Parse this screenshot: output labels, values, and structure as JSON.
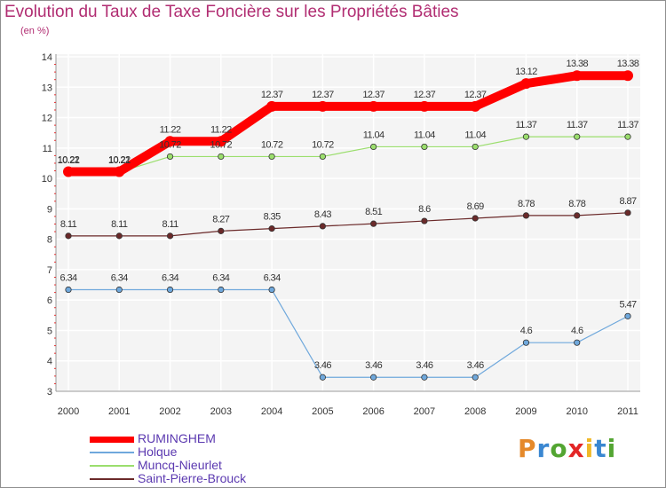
{
  "header": {
    "title": "Evolution du Taux de Taxe Foncière sur les Propriétés Bâties",
    "subtitle": "(en %)"
  },
  "brand": {
    "letters": [
      "P",
      "r",
      "o",
      "x",
      "i",
      "t",
      "i"
    ],
    "colors": [
      "#e5892a",
      "#3a87d1",
      "#53a532",
      "#e32626",
      "#f0b929",
      "#3a87d1",
      "#53a532"
    ]
  },
  "chart_data": {
    "type": "line",
    "title": "Evolution du Taux de Taxe Foncière sur les Propriétés Bâties",
    "ylabel": "(en %)",
    "xlabel": "",
    "x": [
      "2000",
      "2001",
      "2002",
      "2003",
      "2004",
      "2005",
      "2006",
      "2007",
      "2008",
      "2009",
      "2010",
      "2011"
    ],
    "ylim": [
      3,
      14
    ],
    "yticks": [
      "3",
      "4",
      "5",
      "6",
      "7",
      "8",
      "9",
      "10",
      "11",
      "12",
      "13",
      "14"
    ],
    "grid": true,
    "legend_position": "bottom-left",
    "series": [
      {
        "name": "RUMINGHEM",
        "color": "#ff0000",
        "values": [
          10.22,
          10.22,
          11.22,
          11.22,
          12.37,
          12.37,
          12.37,
          12.37,
          12.37,
          13.12,
          13.38,
          13.38
        ],
        "labels": [
          "10.22",
          "10.22",
          "11.22",
          "11.22",
          "12.37",
          "12.37",
          "12.37",
          "12.37",
          "12.37",
          "13.12",
          "13.38",
          "13.38"
        ]
      },
      {
        "name": "Holque",
        "color": "#6fa8dc",
        "values": [
          6.34,
          6.34,
          6.34,
          6.34,
          6.34,
          3.46,
          3.46,
          3.46,
          3.46,
          4.6,
          4.6,
          5.47
        ],
        "labels": [
          "6.34",
          "6.34",
          "6.34",
          "6.34",
          "6.34",
          "3.46",
          "3.46",
          "3.46",
          "3.46",
          "4.6",
          "4.6",
          "5.47"
        ]
      },
      {
        "name": "Muncq-Nieurlet",
        "color": "#9bde6d",
        "values": [
          10.21,
          10.21,
          10.72,
          10.72,
          10.72,
          10.72,
          11.04,
          11.04,
          11.04,
          11.37,
          11.37,
          11.37
        ],
        "labels": [
          "10.21",
          "10.21",
          "10.72",
          "10.72",
          "10.72",
          "10.72",
          "11.04",
          "11.04",
          "11.04",
          "11.37",
          "11.37",
          "11.37"
        ]
      },
      {
        "name": "Saint-Pierre-Brouck",
        "color": "#6b2a2a",
        "values": [
          8.11,
          8.11,
          8.11,
          8.27,
          8.35,
          8.43,
          8.51,
          8.6,
          8.69,
          8.78,
          8.78,
          8.87
        ],
        "labels": [
          "8.11",
          "8.11",
          "8.11",
          "8.27",
          "8.35",
          "8.43",
          "8.51",
          "8.6",
          "8.69",
          "8.78",
          "8.78",
          "8.87"
        ]
      }
    ]
  }
}
